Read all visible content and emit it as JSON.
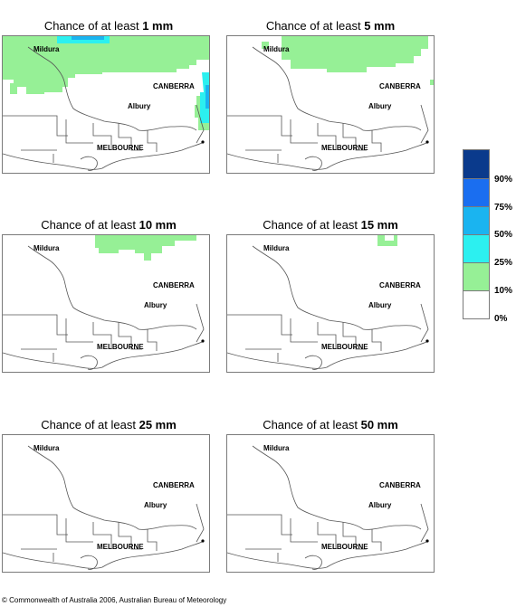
{
  "panels": [
    {
      "prefix": "Chance of at least ",
      "amount": "1 mm"
    },
    {
      "prefix": "Chance of at least ",
      "amount": "5 mm"
    },
    {
      "prefix": "Chance of at least ",
      "amount": "10 mm"
    },
    {
      "prefix": "Chance of at least ",
      "amount": "15 mm"
    },
    {
      "prefix": "Chance of at least ",
      "amount": "25 mm"
    },
    {
      "prefix": "Chance of at least ",
      "amount": "50 mm"
    }
  ],
  "places": {
    "mildura": "Mildura",
    "canberra": "CANBERRA",
    "albury": "Albury",
    "melbourne": "MELBOURNE"
  },
  "legend": {
    "labels": [
      "90%",
      "75%",
      "50%",
      "25%",
      "10%",
      "0%"
    ],
    "colors": [
      "#0a3a8c",
      "#1a6ef0",
      "#1ab4f0",
      "#2cf0f0",
      "#96f096",
      "#ffffff"
    ]
  },
  "copyright": "© Commonwealth of Australia 2006, Australian Bureau of Meteorology"
}
